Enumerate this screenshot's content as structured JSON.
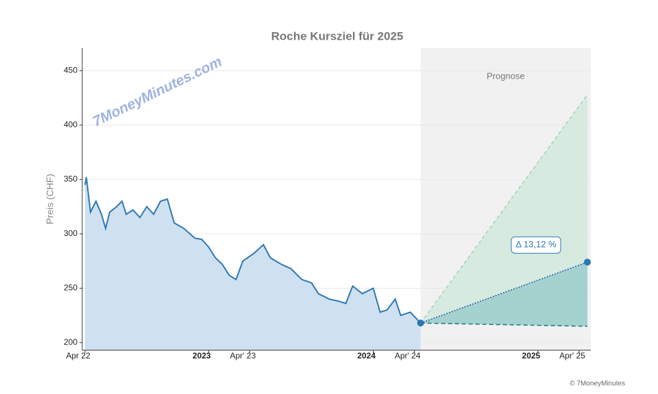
{
  "chart_data": {
    "type": "line",
    "title": "Roche Kursziel für 2025",
    "ylabel": "Preis (CHF)",
    "watermark": "7MoneyMinutes.com",
    "copyright": "© 7MoneyMinutes",
    "forecast_label": "Prognose",
    "annotation": "Δ 13,12 %",
    "xlim": [
      -0.2,
      36.85
    ],
    "ylim": [
      193,
      471
    ],
    "yticks": [
      200,
      250,
      300,
      350,
      400,
      450
    ],
    "xticks": [
      {
        "value": 0,
        "label": "Apr 22"
      },
      {
        "value": 9,
        "label": "2023",
        "bold": true
      },
      {
        "value": 12,
        "label": "Apr' 23"
      },
      {
        "value": 21,
        "label": "2024",
        "bold": true
      },
      {
        "value": 24,
        "label": "Apr' 24"
      },
      {
        "value": 33,
        "label": "2025",
        "bold": true
      },
      {
        "value": 36,
        "label": "Apr' 25"
      }
    ],
    "grid": true,
    "series": [
      {
        "color": "#2a77b4",
        "fill": "#cfe1f0",
        "x": [
          0,
          0.1,
          0.4,
          0.8,
          1.2,
          1.5,
          1.8,
          2.3,
          2.7,
          3.0,
          3.5,
          4.0,
          4.5,
          5.0,
          5.5,
          6.0,
          6.5,
          7.2,
          8.0,
          8.5,
          9.0,
          9.5,
          10.0,
          10.5,
          11.0,
          11.5,
          12.3,
          13.0,
          13.5,
          14.3,
          15.0,
          15.8,
          16.5,
          17.0,
          17.8,
          18.5,
          19.0,
          19.5,
          20.2,
          21.0,
          21.5,
          22.0,
          22.6,
          23.0,
          23.7,
          24.45
        ],
        "values": [
          345,
          352,
          320,
          330,
          318,
          305,
          320,
          325,
          330,
          318,
          322,
          315,
          325,
          318,
          330,
          332,
          310,
          305,
          296,
          295,
          288,
          278,
          272,
          262,
          258,
          275,
          282,
          290,
          278,
          272,
          268,
          258,
          255,
          245,
          240,
          238,
          236,
          252,
          245,
          250,
          228,
          230,
          240,
          225,
          228,
          218
        ]
      },
      {
        "color": "#9fd6b8",
        "dash": "5,4",
        "x": [
          24.45,
          36.6
        ],
        "values": [
          218,
          428
        ]
      },
      {
        "color": "#1f7a8c",
        "dash": "6,4",
        "x": [
          24.45,
          36.6
        ],
        "values": [
          218,
          215
        ]
      },
      {
        "color": "#2a5fa8",
        "dash": "2,2",
        "x": [
          24.45,
          36.6
        ],
        "values": [
          218,
          274
        ]
      }
    ]
  }
}
